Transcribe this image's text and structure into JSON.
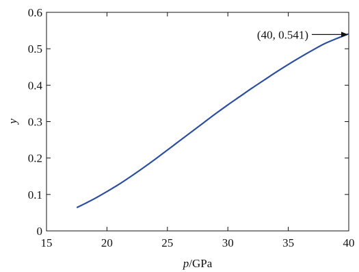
{
  "chart_data": {
    "type": "line",
    "title": "",
    "xlabel": {
      "var": "p",
      "unit": "/GPa"
    },
    "ylabel": "y",
    "xlim": [
      15,
      40
    ],
    "ylim": [
      0,
      0.6
    ],
    "x_ticks": [
      "15",
      "20",
      "25",
      "30",
      "35",
      "40"
    ],
    "y_ticks": [
      "0",
      "0.1",
      "0.2",
      "0.3",
      "0.4",
      "0.5",
      "0.6"
    ],
    "grid": false,
    "series": [
      {
        "color": "#2b4ea2",
        "x": [
          17.5,
          18,
          19,
          20,
          21,
          22,
          23,
          24,
          25,
          26,
          27,
          28,
          29,
          30,
          31,
          32,
          33,
          34,
          35,
          36,
          37,
          38,
          39,
          40
        ],
        "y": [
          0.064,
          0.072,
          0.089,
          0.108,
          0.128,
          0.15,
          0.173,
          0.197,
          0.222,
          0.247,
          0.272,
          0.297,
          0.322,
          0.346,
          0.369,
          0.392,
          0.414,
          0.436,
          0.457,
          0.477,
          0.496,
          0.514,
          0.528,
          0.541
        ]
      }
    ],
    "annotation": {
      "text": "(40, 0.541)",
      "x": 40,
      "y": 0.541
    }
  }
}
